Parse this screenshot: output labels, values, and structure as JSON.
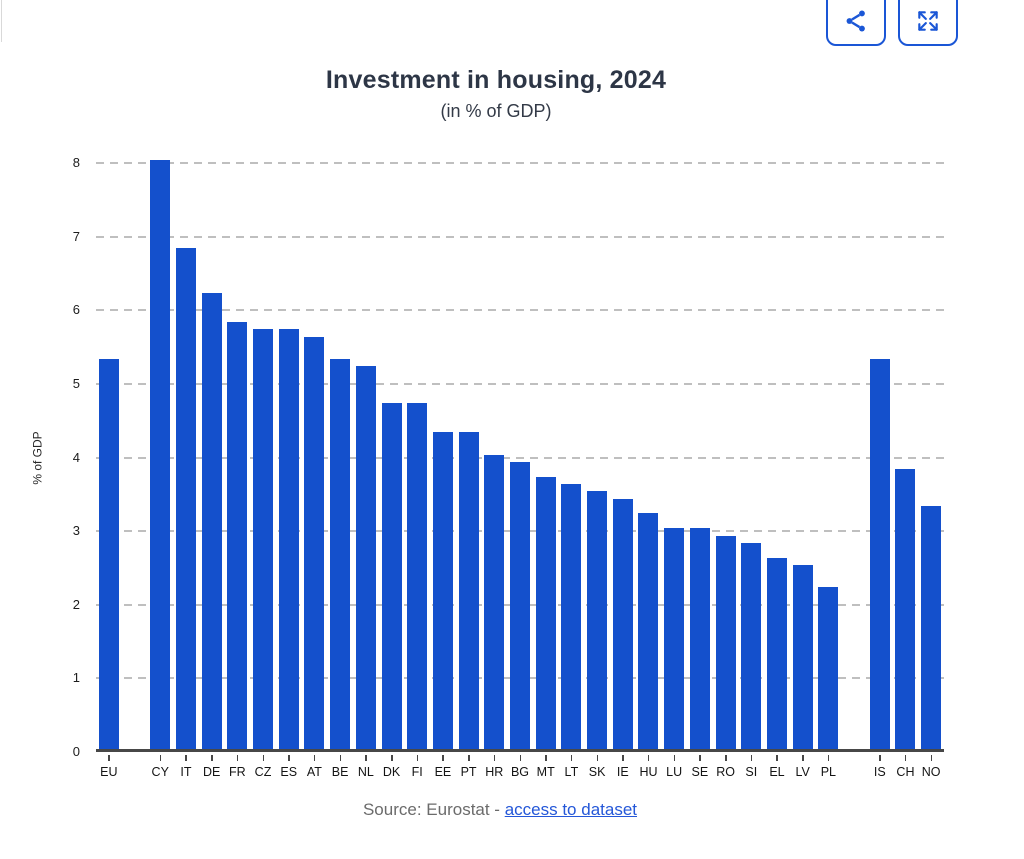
{
  "header": {
    "title": "Investment in housing, 2024",
    "subtitle": "(in % of GDP)"
  },
  "toolbar": {
    "share_icon": "share-icon",
    "fullscreen_icon": "fullscreen-expand-icon"
  },
  "chart_data": {
    "type": "bar",
    "title": "Investment in housing, 2024",
    "subtitle": "(in % of GDP)",
    "categories": [
      "EU",
      "CY",
      "IT",
      "DE",
      "FR",
      "CZ",
      "ES",
      "AT",
      "BE",
      "NL",
      "DK",
      "FI",
      "EE",
      "PT",
      "HR",
      "BG",
      "MT",
      "LT",
      "SK",
      "IE",
      "HU",
      "LU",
      "SE",
      "RO",
      "SI",
      "EL",
      "LV",
      "PL",
      "IS",
      "CH",
      "NO"
    ],
    "values": [
      5.3,
      8.0,
      6.8,
      6.2,
      5.8,
      5.7,
      5.7,
      5.6,
      5.3,
      5.2,
      4.7,
      4.7,
      4.3,
      4.3,
      4.0,
      3.9,
      3.7,
      3.6,
      3.5,
      3.4,
      3.2,
      3.0,
      3.0,
      2.9,
      2.8,
      2.6,
      2.5,
      2.2,
      5.3,
      3.8,
      3.3
    ],
    "xlabel": "",
    "ylabel": "% of GDP",
    "ylim": [
      0,
      8
    ],
    "yticks": [
      0,
      1,
      2,
      3,
      4,
      5,
      6,
      7,
      8
    ],
    "grid": "horizontal-dashed",
    "legend": "none",
    "bar_color": "#1450cc",
    "spacer_after": [
      "EU",
      "PL"
    ]
  },
  "footer": {
    "source_prefix": "Source: Eurostat - ",
    "link_text": "access to dataset"
  },
  "colors": {
    "bar": "#1450cc",
    "accent_blue": "#1a56d6",
    "title_text": "#2d3646",
    "grid": "#bfbfbf",
    "axis": "#474747",
    "source_text": "#6b6b6b",
    "link": "#2457d8"
  }
}
